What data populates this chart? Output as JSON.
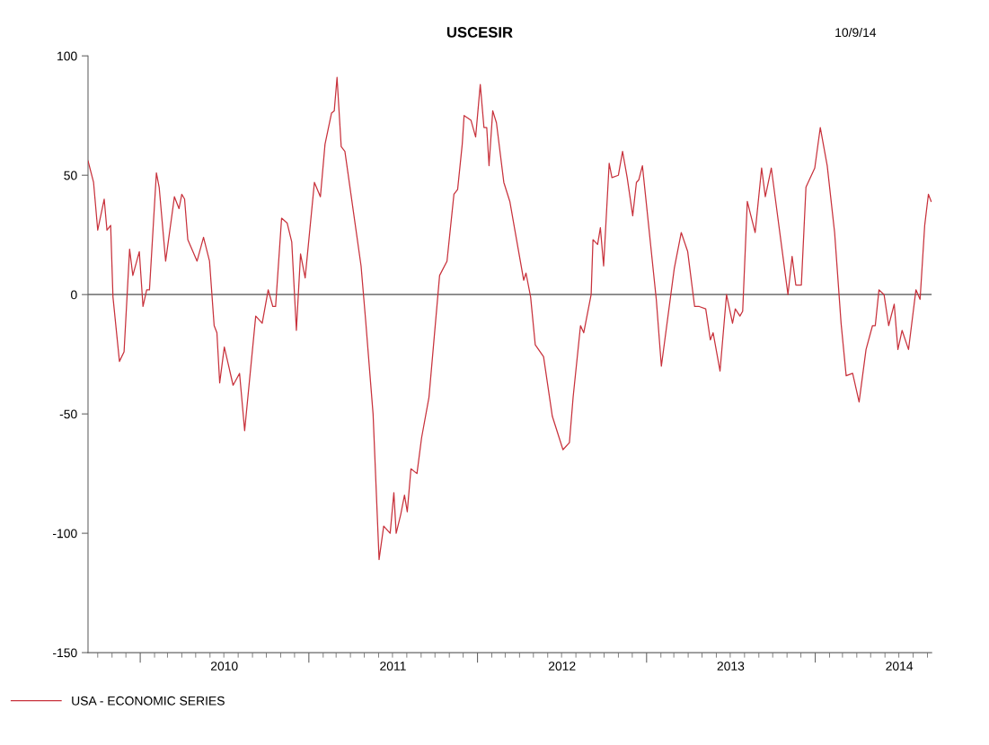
{
  "chart_data": {
    "type": "line",
    "title": "USCESIR",
    "annotations": [
      "10/9/14"
    ],
    "xlim": [
      "2009-09-10",
      "2014-09-10"
    ],
    "xticks": [
      {
        "value": "2010-01-01",
        "label": null
      },
      {
        "value": "2010-07-02",
        "label": "2010"
      },
      {
        "value": "2011-01-01",
        "label": null
      },
      {
        "value": "2011-07-02",
        "label": "2011"
      },
      {
        "value": "2012-01-01",
        "label": null
      },
      {
        "value": "2012-07-02",
        "label": "2012"
      },
      {
        "value": "2013-01-01",
        "label": null
      },
      {
        "value": "2013-07-02",
        "label": "2013"
      },
      {
        "value": "2014-01-01",
        "label": null
      },
      {
        "value": "2014-07-02",
        "label": "2014"
      }
    ],
    "ylim": [
      -150,
      100
    ],
    "yticks": [
      -150,
      -100,
      -50,
      0,
      50,
      100
    ],
    "ref_lines": [
      {
        "axis": "y",
        "value": 0,
        "color": "#808080"
      }
    ],
    "legend": "bottom left",
    "grid": false,
    "marker": "none",
    "line_style": "solid",
    "series": [
      {
        "name": "USA - ECONOMIC SERIES",
        "color": "#c8323c",
        "x": [
          "2009-09-10",
          "2009-09-22",
          "2009-10-01",
          "2009-10-15",
          "2009-10-21",
          "2009-10-29",
          "2009-11-03",
          "2009-11-17",
          "2009-11-27",
          "2009-12-09",
          "2009-12-16",
          "2009-12-30",
          "2010-01-07",
          "2010-01-15",
          "2010-01-21",
          "2010-02-05",
          "2010-02-11",
          "2010-02-25",
          "2010-03-16",
          "2010-03-26",
          "2010-04-01",
          "2010-04-07",
          "2010-04-14",
          "2010-05-04",
          "2010-05-18",
          "2010-05-31",
          "2010-06-10",
          "2010-06-16",
          "2010-06-22",
          "2010-07-02",
          "2010-07-21",
          "2010-08-04",
          "2010-08-15",
          "2010-09-08",
          "2010-09-22",
          "2010-10-05",
          "2010-10-15",
          "2010-10-21",
          "2010-11-03",
          "2010-11-15",
          "2010-11-25",
          "2010-12-05",
          "2010-12-14",
          "2010-12-24",
          "2011-01-13",
          "2011-01-26",
          "2011-02-05",
          "2011-02-19",
          "2011-02-25",
          "2011-03-03",
          "2011-03-12",
          "2011-03-20",
          "2011-04-24",
          "2011-05-04",
          "2011-05-20",
          "2011-06-02",
          "2011-06-12",
          "2011-06-26",
          "2011-07-04",
          "2011-07-09",
          "2011-07-19",
          "2011-07-27",
          "2011-08-02",
          "2011-08-10",
          "2011-08-23",
          "2011-09-02",
          "2011-09-18",
          "2011-10-11",
          "2011-10-27",
          "2011-11-11",
          "2011-11-19",
          "2011-11-29",
          "2011-12-03",
          "2011-12-18",
          "2011-12-28",
          "2012-01-07",
          "2012-01-15",
          "2012-01-21",
          "2012-01-26",
          "2012-02-03",
          "2012-02-11",
          "2012-02-27",
          "2012-03-11",
          "2012-04-10",
          "2012-04-15",
          "2012-04-25",
          "2012-05-05",
          "2012-05-23",
          "2012-06-11",
          "2012-07-04",
          "2012-07-18",
          "2012-07-26",
          "2012-08-11",
          "2012-08-18",
          "2012-09-03",
          "2012-09-07",
          "2012-09-17",
          "2012-09-23",
          "2012-09-30",
          "2012-10-12",
          "2012-10-18",
          "2012-11-01",
          "2012-11-10",
          "2012-11-20",
          "2012-12-02",
          "2012-12-10",
          "2012-12-15",
          "2012-12-23",
          "2013-01-22",
          "2013-02-02",
          "2013-03-02",
          "2013-03-17",
          "2013-03-31",
          "2013-04-15",
          "2013-04-25",
          "2013-05-09",
          "2013-05-19",
          "2013-05-25",
          "2013-06-09",
          "2013-06-23",
          "2013-07-06",
          "2013-07-12",
          "2013-07-22",
          "2013-07-28",
          "2013-08-07",
          "2013-08-24",
          "2013-09-07",
          "2013-09-15",
          "2013-09-28",
          "2013-11-03",
          "2013-11-12",
          "2013-11-20",
          "2013-12-02",
          "2013-12-12",
          "2013-12-31",
          "2014-01-12",
          "2014-01-27",
          "2014-02-12",
          "2014-02-26",
          "2014-03-09",
          "2014-03-23",
          "2014-04-06",
          "2014-04-21",
          "2014-05-05",
          "2014-05-11",
          "2014-05-19",
          "2014-05-30",
          "2014-06-09",
          "2014-06-21",
          "2014-06-29",
          "2014-07-08",
          "2014-07-22",
          "2014-08-07",
          "2014-08-16",
          "2014-08-26",
          "2014-09-03",
          "2014-09-09"
        ],
        "values": [
          56,
          47,
          27,
          40,
          27,
          29,
          -1,
          -28,
          -24,
          19,
          8,
          18,
          -5,
          2,
          2,
          51,
          45,
          14,
          41,
          36,
          42,
          40,
          23,
          14,
          24,
          14,
          -13,
          -16,
          -37,
          -22,
          -38,
          -33,
          -57,
          -9,
          -12,
          2,
          -5,
          -5,
          32,
          30,
          22,
          -15,
          17,
          7,
          47,
          41,
          63,
          76,
          77,
          91,
          62,
          60,
          12,
          -11,
          -50,
          -111,
          -97,
          -100,
          -83,
          -100,
          -92,
          -84,
          -91,
          -73,
          -75,
          -60,
          -43,
          8,
          14,
          42,
          44,
          63,
          75,
          73,
          66,
          88,
          70,
          70,
          54,
          77,
          72,
          47,
          39,
          6,
          9,
          -1,
          -21,
          -26,
          -51,
          -65,
          -62,
          -43,
          -13,
          -16,
          0,
          23,
          21,
          28,
          12,
          55,
          49,
          50,
          60,
          49,
          33,
          47,
          48,
          54,
          -2,
          -30,
          11,
          26,
          18,
          -5,
          -5,
          -6,
          -19,
          -16,
          -32,
          0,
          -12,
          -6,
          -9,
          -7,
          39,
          26,
          53,
          41,
          53,
          0,
          16,
          4,
          4,
          45,
          53,
          70,
          54,
          26,
          -12,
          -34,
          -33,
          -45,
          -23,
          -13,
          -13,
          2,
          0,
          -13,
          -4,
          -23,
          -15,
          -23,
          2,
          -2,
          29,
          42,
          39
        ]
      }
    ]
  }
}
